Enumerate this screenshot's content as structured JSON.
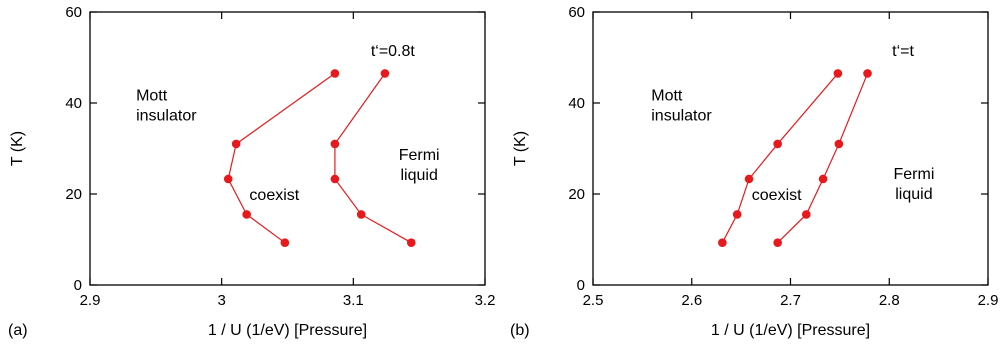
{
  "chart_data": [
    {
      "type": "line",
      "panel_label": "(a)",
      "xlabel": "1 / U  (1/eV)   [Pressure]",
      "ylabel": "T  (K)",
      "xlim": [
        2.9,
        3.2
      ],
      "ylim": [
        0,
        60
      ],
      "xticks": [
        2.9,
        3.0,
        3.1,
        3.2
      ],
      "xtick_labels": [
        "2.9",
        "3",
        "3.1",
        "3.2"
      ],
      "yticks": [
        0,
        20,
        40,
        60
      ],
      "ytick_labels": [
        "0",
        "20",
        "40",
        "60"
      ],
      "grid": false,
      "series": [
        {
          "color": "#e8191c",
          "points": [
            [
              3.086,
              46.5
            ],
            [
              3.011,
              31.0
            ],
            [
              3.005,
              23.3
            ],
            [
              3.019,
              15.5
            ],
            [
              3.048,
              9.3
            ]
          ]
        },
        {
          "color": "#e8191c",
          "points": [
            [
              3.124,
              46.5
            ],
            [
              3.086,
              31.0
            ],
            [
              3.086,
              23.3
            ],
            [
              3.106,
              15.5
            ],
            [
              3.144,
              9.3
            ]
          ]
        }
      ],
      "annotations": [
        {
          "lines": [
            "t‘=0.8t"
          ],
          "x": 3.13,
          "y": 50.3,
          "anchor": "middle"
        },
        {
          "lines": [
            "Mott",
            "insulator"
          ],
          "x": 2.935,
          "y": 40.5,
          "anchor": "start"
        },
        {
          "lines": [
            "coexist"
          ],
          "x": 3.04,
          "y": 18.7,
          "anchor": "middle"
        },
        {
          "lines": [
            "Fermi",
            "liquid"
          ],
          "x": 3.15,
          "y": 27.5,
          "anchor": "middle"
        }
      ]
    },
    {
      "type": "line",
      "panel_label": "(b)",
      "xlabel": "1 / U  (1/eV)   [Pressure]",
      "ylabel": "T  (K)",
      "xlim": [
        2.5,
        2.9
      ],
      "ylim": [
        0,
        60
      ],
      "xticks": [
        2.5,
        2.6,
        2.7,
        2.8,
        2.9
      ],
      "xtick_labels": [
        "2.5",
        "2.6",
        "2.7",
        "2.8",
        "2.9"
      ],
      "yticks": [
        0,
        20,
        40,
        60
      ],
      "ytick_labels": [
        "0",
        "20",
        "40",
        "60"
      ],
      "grid": false,
      "series": [
        {
          "color": "#e8191c",
          "points": [
            [
              2.748,
              46.5
            ],
            [
              2.687,
              31.0
            ],
            [
              2.658,
              23.3
            ],
            [
              2.646,
              15.5
            ],
            [
              2.631,
              9.3
            ]
          ]
        },
        {
          "color": "#e8191c",
          "points": [
            [
              2.778,
              46.5
            ],
            [
              2.749,
              31.0
            ],
            [
              2.733,
              23.3
            ],
            [
              2.716,
              15.5
            ],
            [
              2.687,
              9.3
            ]
          ]
        }
      ],
      "annotations": [
        {
          "lines": [
            "t‘=t"
          ],
          "x": 2.814,
          "y": 50.3,
          "anchor": "middle"
        },
        {
          "lines": [
            "Mott",
            "insulator"
          ],
          "x": 2.559,
          "y": 40.5,
          "anchor": "start"
        },
        {
          "lines": [
            "coexist"
          ],
          "x": 2.686,
          "y": 18.7,
          "anchor": "middle"
        },
        {
          "lines": [
            "Fermi",
            "liquid"
          ],
          "x": 2.825,
          "y": 23.3,
          "anchor": "middle"
        }
      ]
    }
  ]
}
